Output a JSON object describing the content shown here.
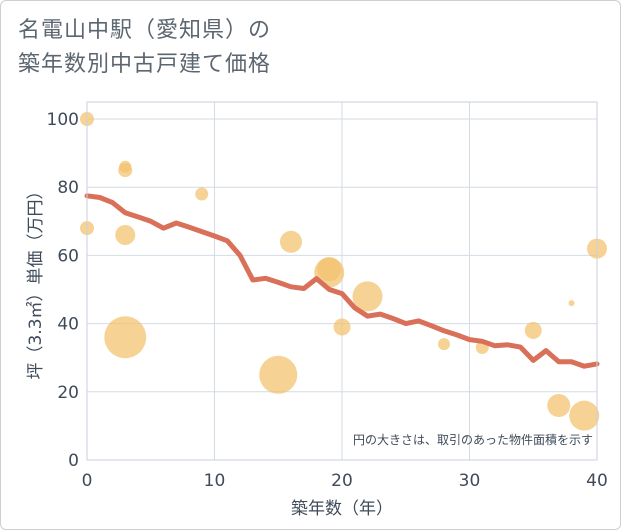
{
  "chart_data": {
    "type": "scatter",
    "title_line1": "名電山中駅（愛知県）の",
    "title_line2": "築年数別中古戸建て価格",
    "xlabel": "築年数（年）",
    "ylabel": "坪（3.3㎡）単価（万円）",
    "xlim": [
      0,
      40
    ],
    "ylim": [
      0,
      105
    ],
    "x_ticks": [
      0,
      10,
      20,
      30,
      40
    ],
    "y_ticks": [
      0,
      20,
      40,
      60,
      80,
      100
    ],
    "note": "円の大きさは、取引のあった物件面積を示す",
    "colors": {
      "line": "#d9705a",
      "bubble": "#f2c16c",
      "grid": "#d3dbe5",
      "frame": "#c9d2dc"
    },
    "series": [
      {
        "name": "trend",
        "kind": "line",
        "x": [
          0,
          1,
          2,
          3,
          4,
          5,
          6,
          7,
          8,
          9,
          10,
          11,
          12,
          13,
          14,
          15,
          16,
          17,
          18,
          19,
          20,
          21,
          22,
          23,
          24,
          25,
          26,
          27,
          28,
          29,
          30,
          31,
          32,
          33,
          34,
          35,
          36,
          37,
          38,
          39,
          40
        ],
        "y": [
          77.5,
          77,
          75.5,
          72.5,
          71.3,
          70,
          68,
          69.5,
          68.3,
          67,
          65.7,
          64.3,
          60,
          52.8,
          53.3,
          52.1,
          50.8,
          50.3,
          53.2,
          50,
          48.8,
          44.6,
          42.2,
          42.8,
          41.5,
          40,
          40.8,
          39.4,
          37.9,
          36.7,
          35.3,
          34.8,
          33.5,
          33.8,
          33.1,
          29.2,
          32.1,
          28.8,
          28.8,
          27.5,
          28.2
        ]
      },
      {
        "name": "transactions",
        "kind": "bubble",
        "points": [
          {
            "x": 0,
            "y": 100,
            "size": 12
          },
          {
            "x": 0,
            "y": 68,
            "size": 12
          },
          {
            "x": 3,
            "y": 86,
            "size": 10
          },
          {
            "x": 3,
            "y": 85,
            "size": 12
          },
          {
            "x": 3,
            "y": 66,
            "size": 18
          },
          {
            "x": 3,
            "y": 36,
            "size": 40
          },
          {
            "x": 9,
            "y": 78,
            "size": 11
          },
          {
            "x": 15,
            "y": 25,
            "size": 36
          },
          {
            "x": 16,
            "y": 64,
            "size": 20
          },
          {
            "x": 19,
            "y": 56,
            "size": 22
          },
          {
            "x": 19,
            "y": 55,
            "size": 28
          },
          {
            "x": 20,
            "y": 39,
            "size": 15
          },
          {
            "x": 22,
            "y": 48,
            "size": 28
          },
          {
            "x": 28,
            "y": 34,
            "size": 10
          },
          {
            "x": 31,
            "y": 33,
            "size": 11
          },
          {
            "x": 35,
            "y": 38,
            "size": 15
          },
          {
            "x": 37,
            "y": 16,
            "size": 21
          },
          {
            "x": 38,
            "y": 46,
            "size": 4
          },
          {
            "x": 39,
            "y": 13,
            "size": 28
          },
          {
            "x": 40,
            "y": 62,
            "size": 18
          }
        ]
      }
    ]
  }
}
